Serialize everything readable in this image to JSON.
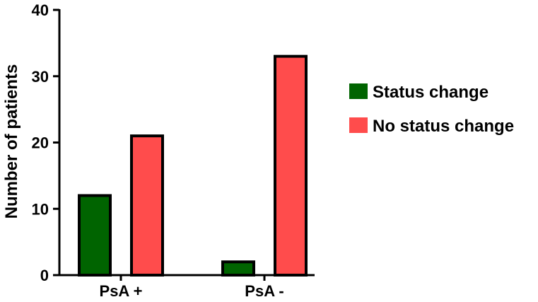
{
  "chart_data": {
    "type": "bar",
    "categories": [
      "PsA +",
      "PsA -"
    ],
    "series": [
      {
        "name": "Status change",
        "values": [
          12,
          2
        ],
        "color": "#006400"
      },
      {
        "name": "No status change",
        "values": [
          21,
          33
        ],
        "color": "#ff4c4c"
      }
    ],
    "ylabel": "Number of patients",
    "xlabel": "",
    "ylim": [
      0,
      40
    ],
    "yticks": [
      0,
      10,
      20,
      30,
      40
    ],
    "grid": false,
    "legend_position": "right"
  }
}
